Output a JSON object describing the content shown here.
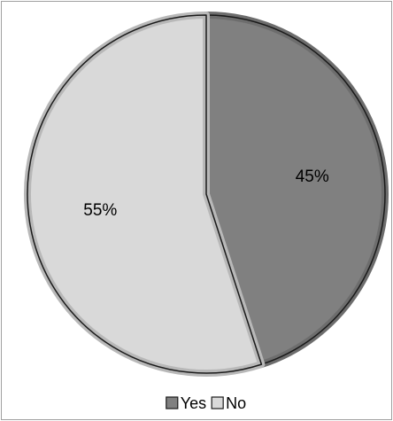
{
  "chart_data": {
    "type": "pie",
    "categories": [
      "Yes",
      "No"
    ],
    "values": [
      45,
      55
    ],
    "value_labels": [
      "45%",
      "55%"
    ],
    "colors": [
      "#808080",
      "#d9d9d9"
    ],
    "legend": "bottom"
  }
}
